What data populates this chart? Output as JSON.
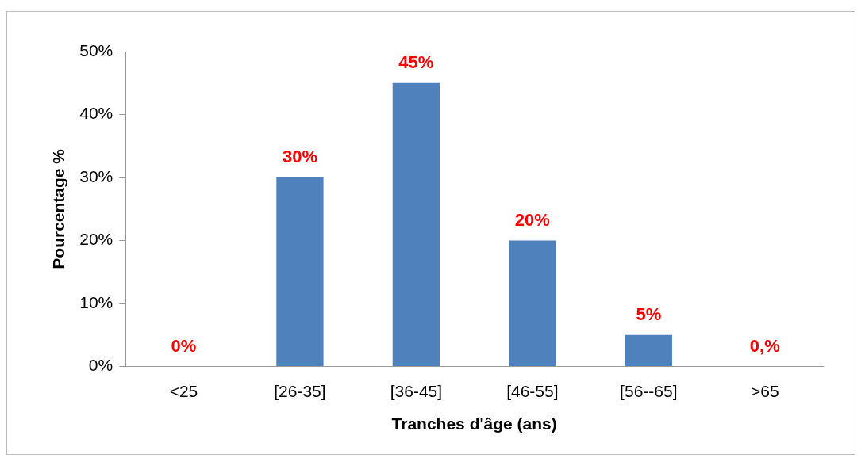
{
  "chart_data": {
    "type": "bar",
    "xlabel": "Tranches d'âge (ans)",
    "ylabel": "Pourcentage %",
    "categories": [
      "<25",
      "[26-35]",
      "[36-45]",
      "[46-55]",
      "[56--65]",
      ">65"
    ],
    "values": [
      0,
      30,
      45,
      20,
      5,
      0
    ],
    "value_labels": [
      "0%",
      "30%",
      "45%",
      "20%",
      "5%",
      "0,%"
    ],
    "color": "#4f81bd",
    "ylim": [
      0,
      50
    ],
    "yticks": [
      {
        "value": 0,
        "label": "0%"
      },
      {
        "value": 10,
        "label": "10%"
      },
      {
        "value": 20,
        "label": "20%"
      },
      {
        "value": 30,
        "label": "30%"
      },
      {
        "value": 40,
        "label": "40%"
      },
      {
        "value": 50,
        "label": "50%"
      }
    ],
    "grid": false,
    "legend": false
  }
}
